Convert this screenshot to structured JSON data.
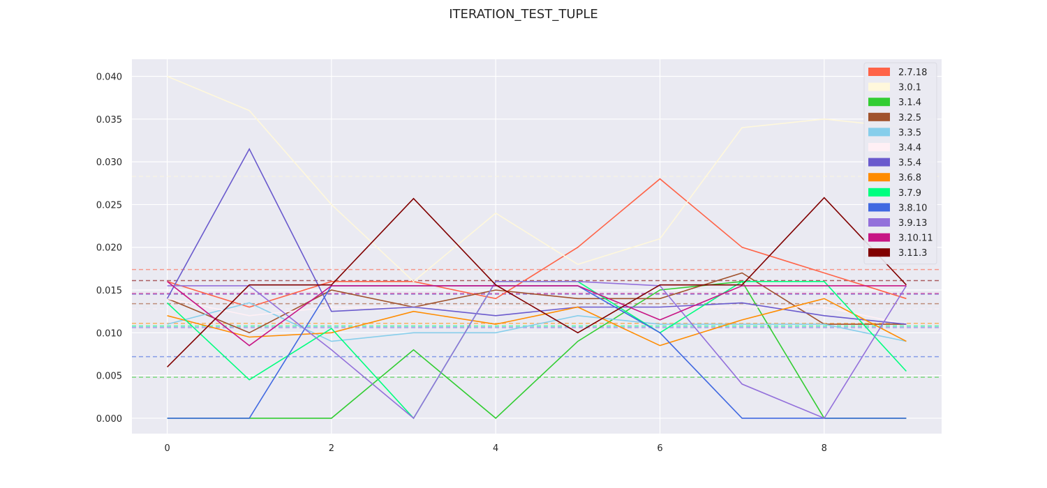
{
  "chart_data": {
    "type": "line",
    "title": "ITERATION_TEST_TUPLE",
    "xlabel": "",
    "ylabel": "",
    "x": [
      0,
      1,
      2,
      3,
      4,
      5,
      6,
      7,
      8,
      9
    ],
    "xlim": [
      -0.43,
      9.43
    ],
    "ylim": [
      -0.0018,
      0.042
    ],
    "xticks": [
      "0",
      "2",
      "4",
      "6",
      "8"
    ],
    "yticks": [
      "0.000",
      "0.005",
      "0.010",
      "0.015",
      "0.020",
      "0.025",
      "0.030",
      "0.035",
      "0.040"
    ],
    "grid": true,
    "legend_position": "top-right",
    "series": [
      {
        "name": "2.7.18",
        "color": "#ff6347",
        "values": [
          0.016,
          0.013,
          0.016,
          0.016,
          0.014,
          0.02,
          0.028,
          0.02,
          0.017,
          0.014
        ],
        "mean": 0.0174
      },
      {
        "name": "3.0.1",
        "color": "#fff8dc",
        "values": [
          0.04,
          0.036,
          0.025,
          0.016,
          0.024,
          0.018,
          0.021,
          0.034,
          0.035,
          0.034
        ],
        "mean": 0.0283
      },
      {
        "name": "3.1.4",
        "color": "#32cd32",
        "values": [
          0.0,
          0.0,
          0.0,
          0.008,
          0.0,
          0.009,
          0.015,
          0.016,
          0.0,
          0.0
        ],
        "mean": 0.0048
      },
      {
        "name": "3.2.5",
        "color": "#a0522d",
        "values": [
          0.014,
          0.01,
          0.015,
          0.013,
          0.015,
          0.014,
          0.014,
          0.017,
          0.011,
          0.011
        ],
        "mean": 0.0134
      },
      {
        "name": "3.3.5",
        "color": "#87ceeb",
        "values": [
          0.011,
          0.0135,
          0.009,
          0.01,
          0.01,
          0.012,
          0.011,
          0.011,
          0.011,
          0.009
        ],
        "mean": 0.0107
      },
      {
        "name": "3.4.4",
        "color": "#fff0f5",
        "values": [
          0.014,
          0.012,
          0.013,
          0.013,
          0.013,
          0.013,
          0.013,
          0.013,
          0.013,
          0.011
        ],
        "mean": 0.0128
      },
      {
        "name": "3.5.4",
        "color": "#6a5acd",
        "values": [
          0.014,
          0.0315,
          0.0125,
          0.013,
          0.012,
          0.013,
          0.013,
          0.0135,
          0.012,
          0.011
        ],
        "mean": 0.0145
      },
      {
        "name": "3.6.8",
        "color": "#ff8c00",
        "values": [
          0.012,
          0.0095,
          0.01,
          0.0125,
          0.011,
          0.013,
          0.0085,
          0.0115,
          0.014,
          0.009
        ],
        "mean": 0.0111
      },
      {
        "name": "3.7.9",
        "color": "#00ff7f",
        "values": [
          0.0135,
          0.0045,
          0.0105,
          0.0,
          0.016,
          0.016,
          0.01,
          0.016,
          0.016,
          0.0055
        ],
        "mean": 0.0108
      },
      {
        "name": "3.8.10",
        "color": "#4169e1",
        "values": [
          0.0,
          0.0,
          0.0155,
          0.0155,
          0.0155,
          0.0155,
          0.01,
          0.0,
          0.0,
          0.0
        ],
        "mean": 0.0072
      },
      {
        "name": "3.9.13",
        "color": "#9370db",
        "values": [
          0.0155,
          0.0155,
          0.008,
          0.0,
          0.016,
          0.016,
          0.0155,
          0.004,
          0.0,
          0.0155
        ],
        "mean": 0.0106
      },
      {
        "name": "3.10.11",
        "color": "#c71585",
        "values": [
          0.016,
          0.0085,
          0.0155,
          0.0155,
          0.0155,
          0.0155,
          0.0115,
          0.0155,
          0.0155,
          0.0155
        ],
        "mean": 0.0146
      },
      {
        "name": "3.11.3",
        "color": "#800000",
        "values": [
          0.006,
          0.0156,
          0.0156,
          0.0257,
          0.0156,
          0.01,
          0.0156,
          0.0156,
          0.0258,
          0.0156
        ],
        "mean": 0.0161
      }
    ]
  }
}
